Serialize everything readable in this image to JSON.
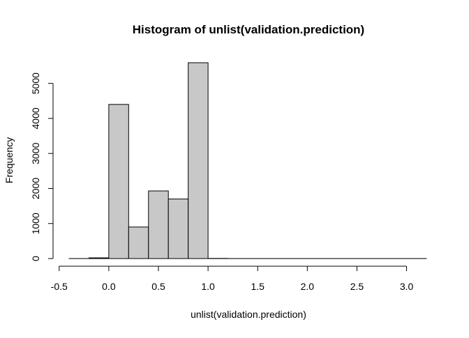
{
  "chart_data": {
    "type": "bar",
    "subtype": "histogram",
    "title": "Histogram of unlist(validation.prediction)",
    "xlabel": "unlist(validation.prediction)",
    "ylabel": "Frequency",
    "xlim": [
      -0.4,
      3.2
    ],
    "ylim": [
      0,
      5600
    ],
    "x_ticks": [
      -0.5,
      0.0,
      0.5,
      1.0,
      1.5,
      2.0,
      2.5,
      3.0
    ],
    "x_tick_labels": [
      "-0.5",
      "0.0",
      "0.5",
      "1.0",
      "1.5",
      "2.0",
      "2.5",
      "3.0"
    ],
    "y_ticks": [
      0,
      1000,
      2000,
      3000,
      4000,
      5000
    ],
    "y_tick_labels": [
      "0",
      "1000",
      "2000",
      "3000",
      "4000",
      "5000"
    ],
    "bin_edges": [
      -0.4,
      -0.2,
      0.0,
      0.2,
      0.4,
      0.6,
      0.8,
      1.0,
      1.2,
      1.4,
      1.6,
      1.8,
      2.0,
      2.2,
      2.4,
      2.6,
      2.8,
      3.0,
      3.2
    ],
    "counts": [
      1,
      20,
      4400,
      900,
      1930,
      1700,
      5590,
      5,
      1,
      1,
      1,
      1,
      1,
      1,
      1,
      1,
      1,
      1
    ],
    "colors": {
      "bar_fill": "#c8c8c8",
      "bar_stroke": "#000000",
      "axis": "#000000",
      "background": "#ffffff"
    }
  }
}
